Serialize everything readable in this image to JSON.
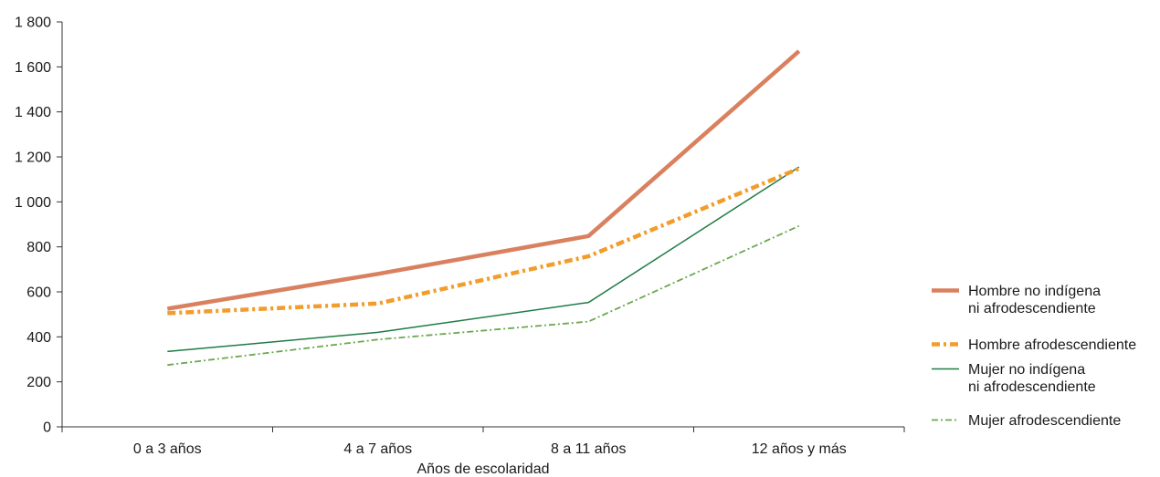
{
  "chart_data": {
    "type": "line",
    "title": "",
    "xlabel": "Años de escolaridad",
    "ylabel": "",
    "categories": [
      "0 a 3 años",
      "4 a 7 años",
      "8 a 11 años",
      "12 años y más"
    ],
    "ylim": [
      0,
      1800
    ],
    "yticks": [
      0,
      200,
      400,
      600,
      800,
      1000,
      1200,
      1400,
      1600,
      1800
    ],
    "ytick_labels": [
      "0",
      "200",
      "400",
      "600",
      "800",
      "1 000",
      "1 200",
      "1 400",
      "1 600",
      "1 800"
    ],
    "grid": false,
    "legend_position": "right",
    "series": [
      {
        "name": "Hombre no indígena ni afrodescendiente",
        "legend_lines": [
          "Hombre no indígena",
          "ni afrodescendiente"
        ],
        "values": [
          525,
          680,
          848,
          1670
        ],
        "color": "#d9805f",
        "style": "solid-thick"
      },
      {
        "name": "Hombre afrodescendiente",
        "legend_lines": [
          "Hombre afrodescendiente"
        ],
        "values": [
          505,
          548,
          758,
          1148
        ],
        "color": "#f29c2b",
        "style": "dash-dot-thick"
      },
      {
        "name": "Mujer no indígena ni afrodescendiente",
        "legend_lines": [
          "Mujer no indígena",
          "ni afrodescendiente"
        ],
        "values": [
          335,
          420,
          553,
          1155
        ],
        "color": "#1e7b45",
        "style": "solid-thin"
      },
      {
        "name": "Mujer afrodescendiente",
        "legend_lines": [
          "Mujer afrodescendiente"
        ],
        "values": [
          275,
          388,
          468,
          893
        ],
        "color": "#6aa84f",
        "style": "dash-dot-thin"
      }
    ]
  }
}
